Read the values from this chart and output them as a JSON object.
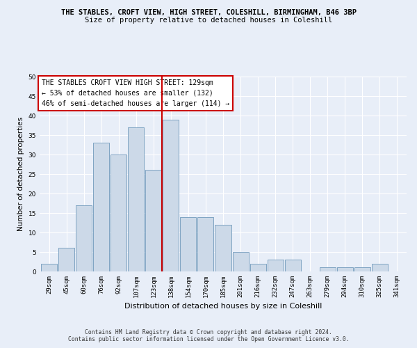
{
  "title": "THE STABLES, CROFT VIEW, HIGH STREET, COLESHILL, BIRMINGHAM, B46 3BP",
  "subtitle": "Size of property relative to detached houses in Coleshill",
  "xlabel": "Distribution of detached houses by size in Coleshill",
  "ylabel": "Number of detached properties",
  "bin_labels": [
    "29sqm",
    "45sqm",
    "60sqm",
    "76sqm",
    "92sqm",
    "107sqm",
    "123sqm",
    "138sqm",
    "154sqm",
    "170sqm",
    "185sqm",
    "201sqm",
    "216sqm",
    "232sqm",
    "247sqm",
    "263sqm",
    "279sqm",
    "294sqm",
    "310sqm",
    "325sqm",
    "341sqm"
  ],
  "bar_heights": [
    2,
    6,
    17,
    33,
    30,
    37,
    26,
    39,
    14,
    14,
    12,
    5,
    2,
    3,
    3,
    0,
    1,
    1,
    1,
    2,
    0
  ],
  "bar_color": "#ccd9e8",
  "bar_edge_color": "#7099bb",
  "vline_color": "#cc0000",
  "ylim": [
    0,
    50
  ],
  "yticks": [
    0,
    5,
    10,
    15,
    20,
    25,
    30,
    35,
    40,
    45,
    50
  ],
  "annotation_text": "THE STABLES CROFT VIEW HIGH STREET: 129sqm\n← 53% of detached houses are smaller (132)\n46% of semi-detached houses are larger (114) →",
  "annotation_box_color": "#ffffff",
  "annotation_box_edge": "#cc0000",
  "footer_line1": "Contains HM Land Registry data © Crown copyright and database right 2024.",
  "footer_line2": "Contains public sector information licensed under the Open Government Licence v3.0.",
  "bg_color": "#e8eef8",
  "plot_bg_color": "#e8eef8",
  "title_fontsize": 7.5,
  "subtitle_fontsize": 7.5,
  "ylabel_fontsize": 7.5,
  "xlabel_fontsize": 8,
  "tick_fontsize": 6.5,
  "annot_fontsize": 7,
  "footer_fontsize": 5.8
}
